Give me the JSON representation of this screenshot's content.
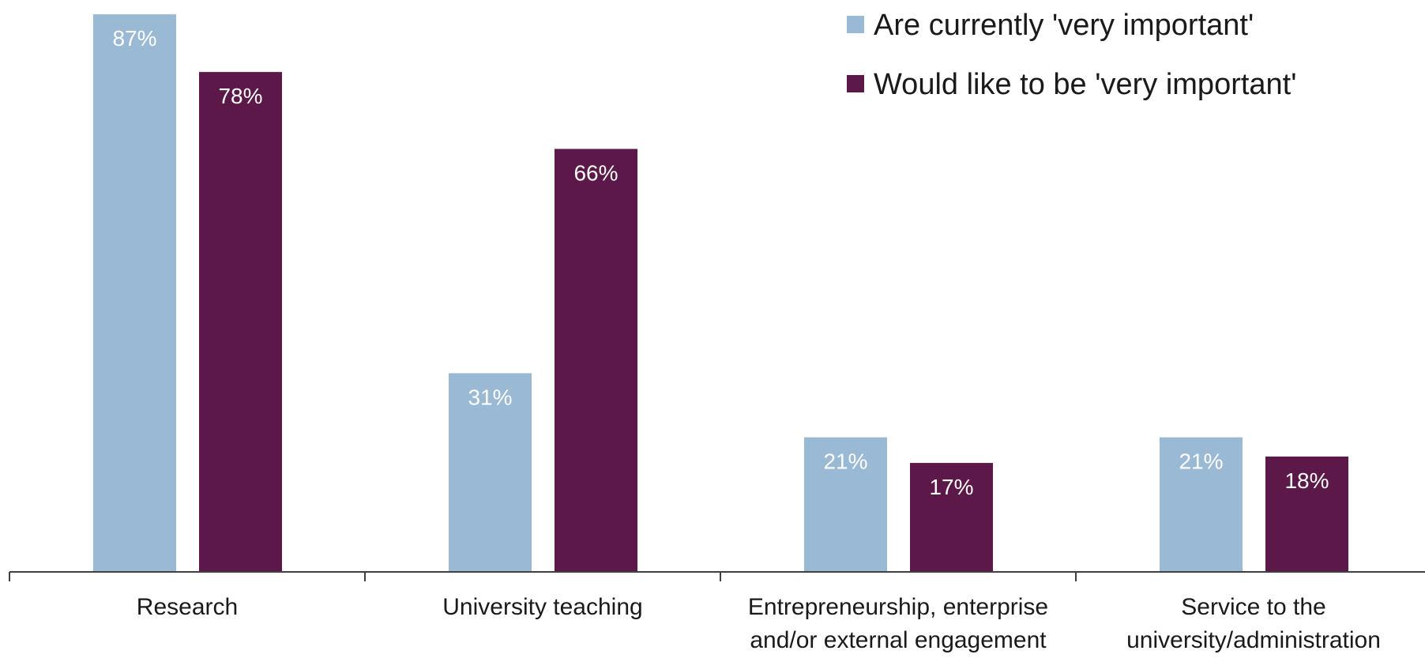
{
  "chart_data": {
    "type": "bar",
    "categories": [
      [
        "Research"
      ],
      [
        "University teaching"
      ],
      [
        "Entrepreneurship, enterprise",
        "and/or external engagement"
      ],
      [
        "Service to the",
        "university/administration"
      ]
    ],
    "series": [
      {
        "name": "Are currently 'very important'",
        "color": "#9ab9d5",
        "values": [
          87,
          31,
          21,
          21
        ],
        "labels": [
          "87%",
          "31%",
          "21%",
          "21%"
        ]
      },
      {
        "name": "Would like to be 'very important'",
        "color": "#5b1848",
        "values": [
          78,
          66,
          17,
          18
        ],
        "labels": [
          "78%",
          "66%",
          "17%",
          "18%"
        ]
      }
    ],
    "ylim": [
      0,
      88
    ],
    "xlabel": "",
    "ylabel": "",
    "grid": false,
    "legend_position": "top-right"
  }
}
